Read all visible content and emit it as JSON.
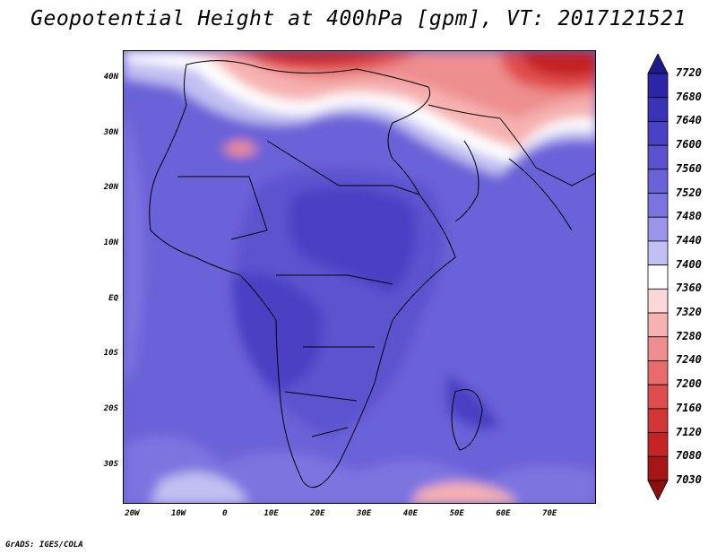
{
  "title": "Geopotential Height at 400hPa [gpm], VT: 2017121521",
  "credit": "GrADS: IGES/COLA",
  "map": {
    "lon_range": [
      -22,
      80
    ],
    "lat_range": [
      -37,
      45
    ],
    "lat_ticks": [
      {
        "value": 40,
        "label": "40N"
      },
      {
        "value": 30,
        "label": "30N"
      },
      {
        "value": 20,
        "label": "20N"
      },
      {
        "value": 10,
        "label": "10N"
      },
      {
        "value": 0,
        "label": "EQ"
      },
      {
        "value": -10,
        "label": "10S"
      },
      {
        "value": -20,
        "label": "20S"
      },
      {
        "value": -30,
        "label": "30S"
      }
    ],
    "lon_ticks": [
      {
        "value": -20,
        "label": "20W"
      },
      {
        "value": -10,
        "label": "10W"
      },
      {
        "value": 0,
        "label": "0"
      },
      {
        "value": 10,
        "label": "10E"
      },
      {
        "value": 20,
        "label": "20E"
      },
      {
        "value": 30,
        "label": "30E"
      },
      {
        "value": 40,
        "label": "40E"
      },
      {
        "value": 50,
        "label": "50E"
      },
      {
        "value": 60,
        "label": "60E"
      },
      {
        "value": 70,
        "label": "70E"
      }
    ]
  },
  "colorbar": {
    "levels": [
      "7720",
      "7680",
      "7640",
      "7600",
      "7560",
      "7520",
      "7480",
      "7440",
      "7400",
      "7360",
      "7320",
      "7280",
      "7240",
      "7200",
      "7160",
      "7120",
      "7080",
      "7030"
    ],
    "colors_top_to_bottom": [
      "#1f1a8c",
      "#2d25a8",
      "#3a33b8",
      "#4a41c4",
      "#5b52cf",
      "#6a62d8",
      "#7b74e0",
      "#9a95ea",
      "#c2c0f2",
      "#ffffff",
      "#fbd7d7",
      "#f6b1b1",
      "#ee8e8e",
      "#e86c6c",
      "#e04d4d",
      "#d43535",
      "#c42424",
      "#a81515",
      "#8c0f0f"
    ]
  }
}
